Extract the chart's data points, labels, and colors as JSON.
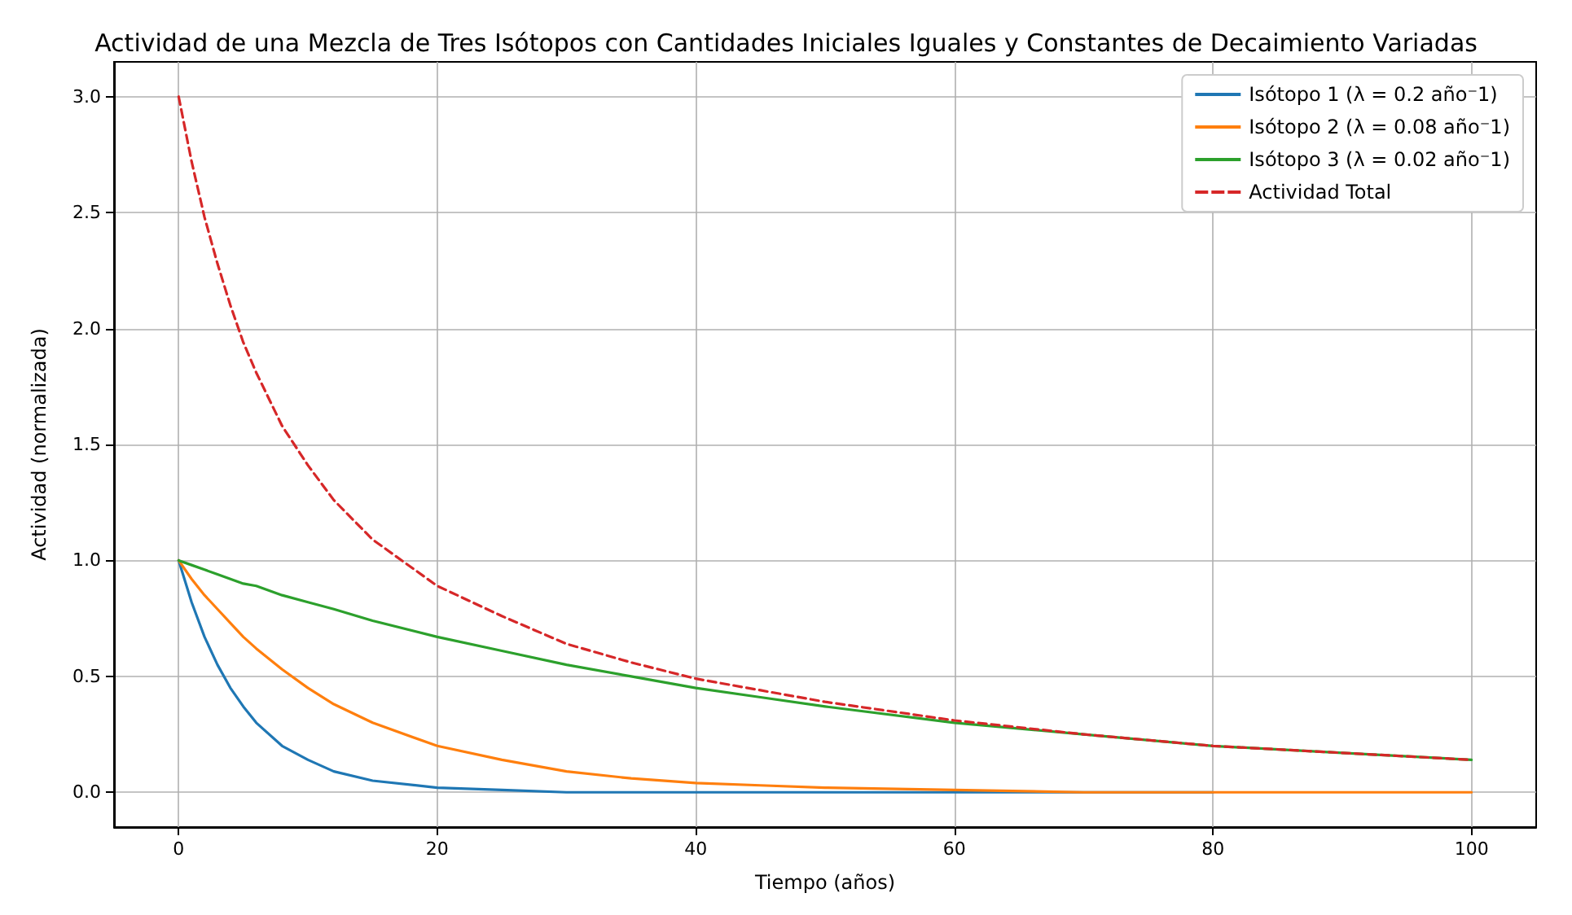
{
  "chart_data": {
    "type": "line",
    "title": "Actividad de una Mezcla de Tres Isótopos con Cantidades Iniciales Iguales y Constantes de Decaimiento Variadas",
    "xlabel": "Tiempo (años)",
    "ylabel": "Actividad (normalizada)",
    "x": [
      0,
      1,
      2,
      3,
      4,
      5,
      6,
      8,
      10,
      12,
      15,
      20,
      25,
      30,
      35,
      40,
      45,
      50,
      60,
      70,
      80,
      90,
      100
    ],
    "series": [
      {
        "name": "Isótopo 1 (λ = 0.2 año⁻1)",
        "color": "#1f77b4",
        "values": [
          1,
          0.82,
          0.67,
          0.55,
          0.45,
          0.37,
          0.3,
          0.2,
          0.14,
          0.09,
          0.05,
          0.02,
          0.01,
          0,
          0,
          0,
          0,
          0,
          0,
          0,
          0,
          null,
          null
        ]
      },
      {
        "name": "Isótopo 2 (λ = 0.08 año⁻1)",
        "color": "#ff7f0e",
        "values": [
          1,
          0.92,
          0.85,
          0.79,
          0.73,
          0.67,
          0.62,
          0.53,
          0.45,
          0.38,
          0.3,
          0.2,
          0.14,
          0.09,
          0.06,
          0.04,
          0.03,
          0.02,
          0.01,
          0,
          0,
          0,
          0
        ]
      },
      {
        "name": "Isótopo 3 (λ = 0.02 año⁻1)",
        "color": "#2ca02c",
        "values": [
          1,
          0.98,
          0.96,
          0.94,
          0.92,
          0.9,
          0.89,
          0.85,
          0.82,
          0.79,
          0.74,
          0.67,
          0.61,
          0.55,
          0.5,
          0.45,
          0.41,
          0.37,
          0.3,
          0.25,
          0.2,
          0.17,
          0.14
        ]
      },
      {
        "name": "Actividad Total",
        "color": "#d62728",
        "line_style": "dashed",
        "values": [
          3,
          2.72,
          2.48,
          2.28,
          2.1,
          1.94,
          1.81,
          1.58,
          1.41,
          1.26,
          1.09,
          0.89,
          0.76,
          0.64,
          0.56,
          0.49,
          0.44,
          0.39,
          0.31,
          0.25,
          0.2,
          0.17,
          0.14
        ]
      }
    ],
    "xlim": [
      -5,
      105
    ],
    "xticks": [
      0,
      20,
      40,
      60,
      80,
      100
    ],
    "ylim": [
      -0.15,
      3.15
    ],
    "yticks": [
      {
        "value": 0,
        "label": "0.0"
      },
      {
        "value": 0.5,
        "label": "0.5"
      },
      {
        "value": 1,
        "label": "1.0"
      },
      {
        "value": 1.5,
        "label": "1.5"
      },
      {
        "value": 2,
        "label": "2.0"
      },
      {
        "value": 2.5,
        "label": "2.5"
      },
      {
        "value": 3,
        "label": "3.0"
      }
    ],
    "grid": true,
    "legend": "top right",
    "line_style": "solid"
  }
}
